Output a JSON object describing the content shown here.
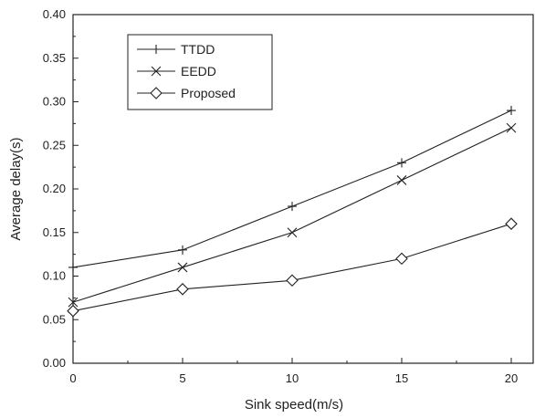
{
  "chart_data": {
    "type": "line",
    "title": "",
    "xlabel": "Sink speed(m/s)",
    "ylabel": "Average delay(s)",
    "x": [
      0,
      5,
      10,
      15,
      20
    ],
    "xlim": [
      0,
      21
    ],
    "ylim": [
      0,
      0.4
    ],
    "xticks": [
      "0",
      "5",
      "10",
      "15",
      "20"
    ],
    "yticks": [
      "0.00",
      "0.05",
      "0.10",
      "0.15",
      "0.20",
      "0.25",
      "0.30",
      "0.35",
      "0.40"
    ],
    "grid": false,
    "legend_position": "top-left",
    "series": [
      {
        "name": "TTDD",
        "marker": "plus",
        "values": [
          0.11,
          0.13,
          0.18,
          0.23,
          0.29
        ]
      },
      {
        "name": "EEDD",
        "marker": "cross",
        "values": [
          0.07,
          0.11,
          0.15,
          0.21,
          0.27
        ]
      },
      {
        "name": "Proposed",
        "marker": "diamond",
        "values": [
          0.06,
          0.085,
          0.095,
          0.12,
          0.16
        ]
      }
    ]
  }
}
